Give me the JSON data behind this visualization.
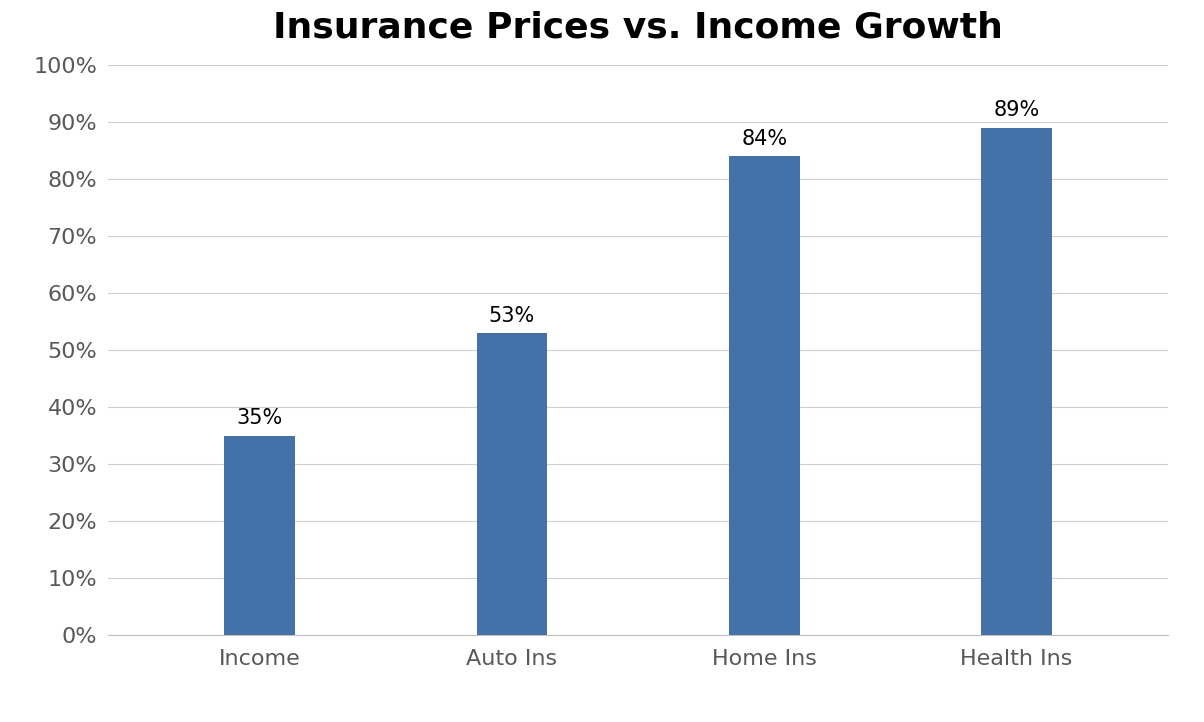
{
  "title": "Insurance Prices vs. Income Growth",
  "categories": [
    "Income",
    "Auto Ins",
    "Home Ins",
    "Health Ins"
  ],
  "values": [
    0.35,
    0.53,
    0.84,
    0.89
  ],
  "labels": [
    "35%",
    "53%",
    "84%",
    "89%"
  ],
  "bar_color": "#4472a8",
  "background_color": "#ffffff",
  "ylim": [
    0,
    1.0
  ],
  "yticks": [
    0.0,
    0.1,
    0.2,
    0.3,
    0.4,
    0.5,
    0.6,
    0.7,
    0.8,
    0.9,
    1.0
  ],
  "ytick_labels": [
    "0%",
    "10%",
    "20%",
    "30%",
    "40%",
    "50%",
    "60%",
    "70%",
    "80%",
    "90%",
    "100%"
  ],
  "title_fontsize": 26,
  "tick_fontsize": 16,
  "annot_fontsize": 15,
  "tick_color": "#595959",
  "grid_color": "#d0d0d0",
  "bar_width": 0.28,
  "figsize": [
    12.04,
    7.22
  ],
  "dpi": 100
}
